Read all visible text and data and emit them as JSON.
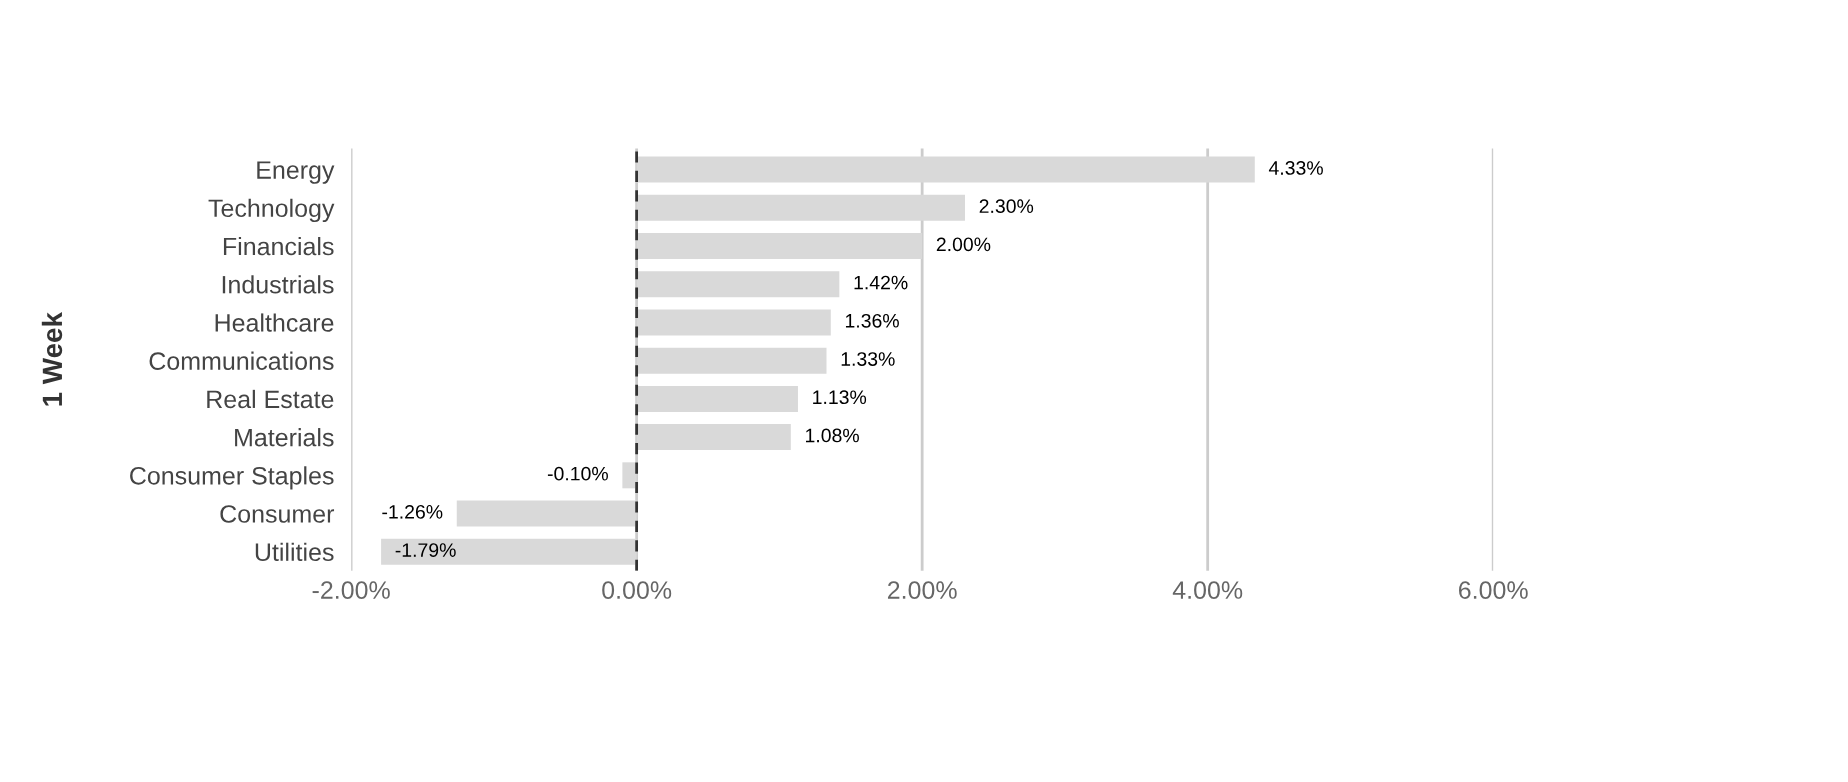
{
  "chart_data": {
    "type": "bar",
    "orientation": "horizontal",
    "ylabel": "1 Week",
    "categories": [
      "Energy",
      "Technology",
      "Financials",
      "Industrials",
      "Healthcare",
      "Communications",
      "Real Estate",
      "Materials",
      "Consumer Staples",
      "Consumer",
      "Utilities"
    ],
    "values": [
      4.33,
      2.3,
      2.0,
      1.42,
      1.36,
      1.33,
      1.13,
      1.08,
      -0.1,
      -1.26,
      -1.79
    ],
    "value_labels": [
      "4.33%",
      "2.30%",
      "2.00%",
      "1.42%",
      "1.36%",
      "1.33%",
      "1.13%",
      "1.08%",
      "-0.10%",
      "-1.26%",
      "-1.79%"
    ],
    "color": "#d9d9d9",
    "xlim": [
      -2,
      6
    ],
    "xticks": [
      {
        "value": -2,
        "label": "-2.00%"
      },
      {
        "value": 0,
        "label": "0.00%"
      },
      {
        "value": 2,
        "label": "2.00%"
      },
      {
        "value": 4,
        "label": "4.00%"
      },
      {
        "value": 6,
        "label": "6.00%"
      }
    ],
    "ref_lines": [
      {
        "axis": "x",
        "value": 0,
        "label": null,
        "color": "#333333",
        "line_style": "dashed"
      }
    ],
    "grid": "x",
    "legend": false
  }
}
